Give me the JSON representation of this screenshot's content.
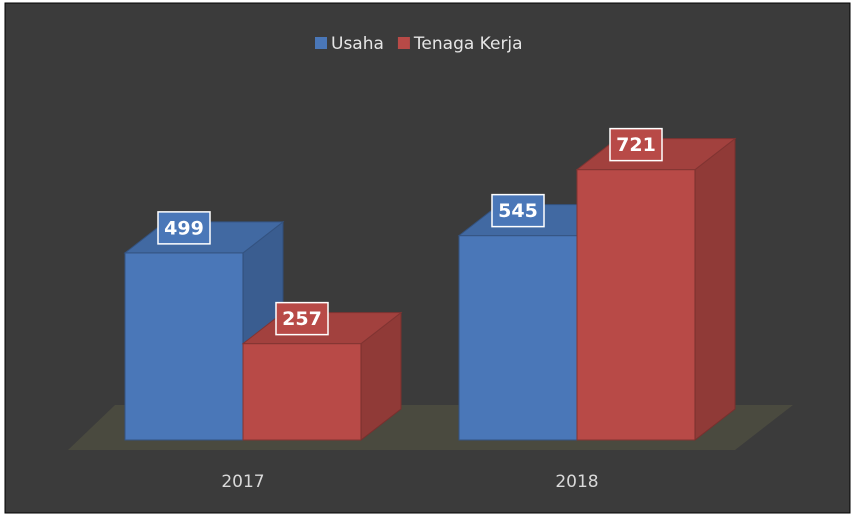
{
  "chart_data": {
    "type": "bar3d",
    "categories": [
      "2017",
      "2018"
    ],
    "series": [
      {
        "name": "Usaha",
        "color": "#4a77b8",
        "values": [
          499,
          545
        ]
      },
      {
        "name": "Tenaga Kerja",
        "color": "#b84a47",
        "values": [
          257,
          721
        ]
      }
    ],
    "legend": "top"
  }
}
